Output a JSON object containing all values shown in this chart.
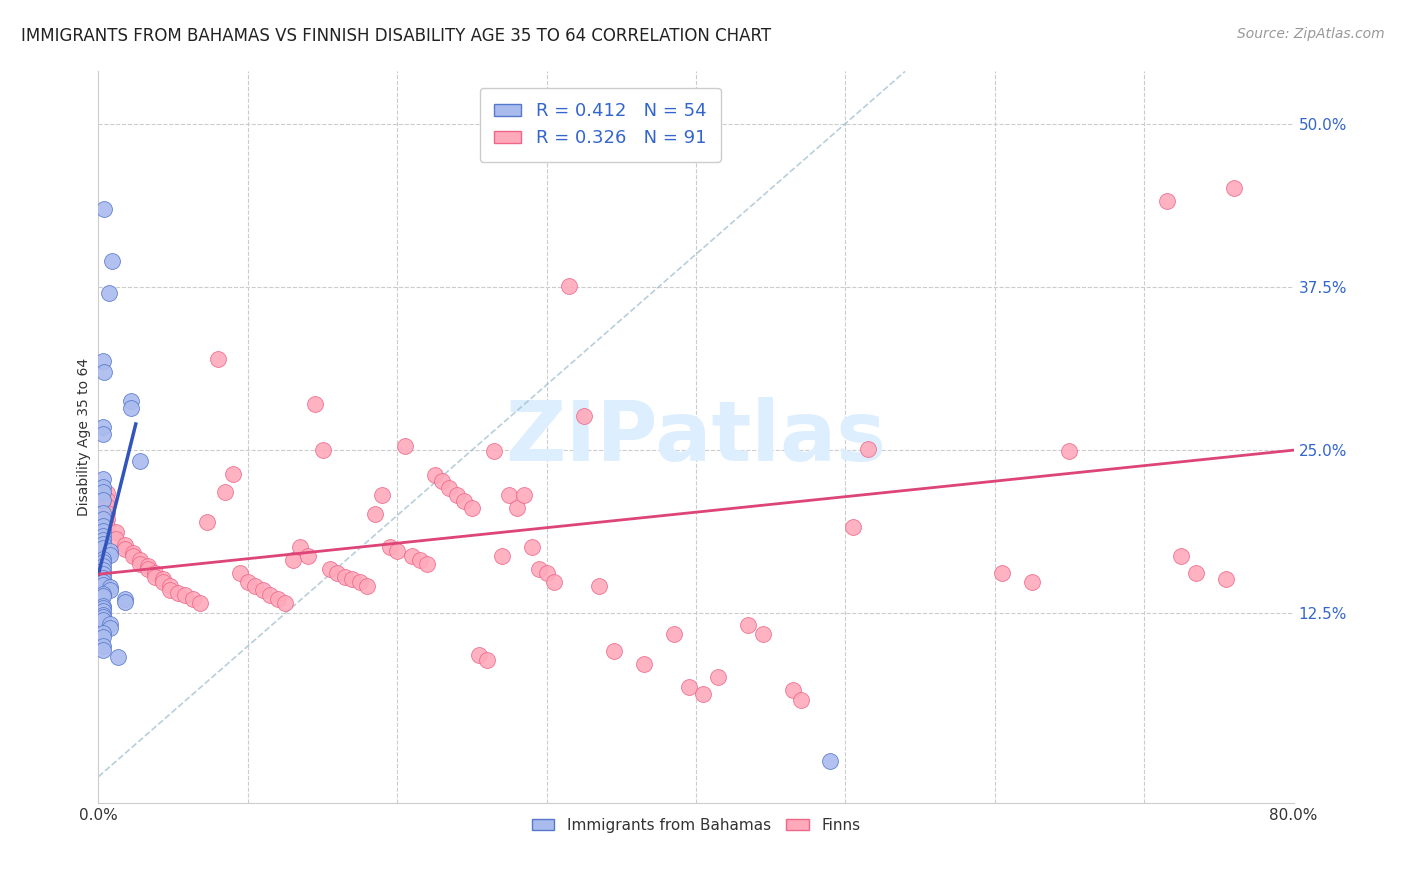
{
  "title": "IMMIGRANTS FROM BAHAMAS VS FINNISH DISABILITY AGE 35 TO 64 CORRELATION CHART",
  "source": "Source: ZipAtlas.com",
  "ylabel": "Disability Age 35 to 64",
  "ytick_labels": [
    "12.5%",
    "25.0%",
    "37.5%",
    "50.0%"
  ],
  "ytick_values": [
    0.125,
    0.25,
    0.375,
    0.5
  ],
  "xlim": [
    0.0,
    0.8
  ],
  "ylim": [
    -0.02,
    0.54
  ],
  "xlim_display": [
    0.0,
    0.8
  ],
  "watermark": "ZIPatlas",
  "blue_scatter": [
    [
      0.004,
      0.435
    ],
    [
      0.009,
      0.395
    ],
    [
      0.007,
      0.37
    ],
    [
      0.003,
      0.318
    ],
    [
      0.004,
      0.31
    ],
    [
      0.022,
      0.288
    ],
    [
      0.022,
      0.282
    ],
    [
      0.003,
      0.268
    ],
    [
      0.003,
      0.262
    ],
    [
      0.028,
      0.242
    ],
    [
      0.003,
      0.228
    ],
    [
      0.003,
      0.222
    ],
    [
      0.003,
      0.218
    ],
    [
      0.003,
      0.212
    ],
    [
      0.003,
      0.202
    ],
    [
      0.003,
      0.197
    ],
    [
      0.003,
      0.192
    ],
    [
      0.003,
      0.188
    ],
    [
      0.003,
      0.184
    ],
    [
      0.003,
      0.181
    ],
    [
      0.003,
      0.178
    ],
    [
      0.003,
      0.175
    ],
    [
      0.008,
      0.173
    ],
    [
      0.008,
      0.17
    ],
    [
      0.003,
      0.167
    ],
    [
      0.003,
      0.164
    ],
    [
      0.003,
      0.161
    ],
    [
      0.003,
      0.158
    ],
    [
      0.003,
      0.155
    ],
    [
      0.003,
      0.152
    ],
    [
      0.003,
      0.149
    ],
    [
      0.003,
      0.147
    ],
    [
      0.008,
      0.145
    ],
    [
      0.008,
      0.143
    ],
    [
      0.003,
      0.14
    ],
    [
      0.003,
      0.138
    ],
    [
      0.018,
      0.136
    ],
    [
      0.018,
      0.134
    ],
    [
      0.003,
      0.131
    ],
    [
      0.003,
      0.129
    ],
    [
      0.003,
      0.127
    ],
    [
      0.003,
      0.124
    ],
    [
      0.003,
      0.122
    ],
    [
      0.003,
      0.12
    ],
    [
      0.008,
      0.117
    ],
    [
      0.008,
      0.114
    ],
    [
      0.003,
      0.11
    ],
    [
      0.003,
      0.107
    ],
    [
      0.003,
      0.1
    ],
    [
      0.003,
      0.097
    ],
    [
      0.013,
      0.092
    ],
    [
      0.49,
      0.012
    ]
  ],
  "pink_scatter": [
    [
      0.006,
      0.217
    ],
    [
      0.006,
      0.212
    ],
    [
      0.006,
      0.207
    ],
    [
      0.006,
      0.202
    ],
    [
      0.006,
      0.197
    ],
    [
      0.006,
      0.192
    ],
    [
      0.012,
      0.187
    ],
    [
      0.012,
      0.182
    ],
    [
      0.018,
      0.177
    ],
    [
      0.018,
      0.174
    ],
    [
      0.023,
      0.171
    ],
    [
      0.023,
      0.169
    ],
    [
      0.028,
      0.166
    ],
    [
      0.028,
      0.163
    ],
    [
      0.033,
      0.161
    ],
    [
      0.033,
      0.159
    ],
    [
      0.038,
      0.156
    ],
    [
      0.038,
      0.153
    ],
    [
      0.043,
      0.151
    ],
    [
      0.043,
      0.149
    ],
    [
      0.048,
      0.146
    ],
    [
      0.048,
      0.143
    ],
    [
      0.053,
      0.141
    ],
    [
      0.058,
      0.139
    ],
    [
      0.063,
      0.136
    ],
    [
      0.068,
      0.133
    ],
    [
      0.073,
      0.195
    ],
    [
      0.08,
      0.32
    ],
    [
      0.085,
      0.218
    ],
    [
      0.09,
      0.232
    ],
    [
      0.095,
      0.156
    ],
    [
      0.1,
      0.149
    ],
    [
      0.105,
      0.146
    ],
    [
      0.11,
      0.143
    ],
    [
      0.115,
      0.139
    ],
    [
      0.12,
      0.136
    ],
    [
      0.125,
      0.133
    ],
    [
      0.13,
      0.166
    ],
    [
      0.135,
      0.176
    ],
    [
      0.14,
      0.169
    ],
    [
      0.145,
      0.285
    ],
    [
      0.15,
      0.25
    ],
    [
      0.155,
      0.159
    ],
    [
      0.16,
      0.156
    ],
    [
      0.165,
      0.153
    ],
    [
      0.17,
      0.151
    ],
    [
      0.175,
      0.149
    ],
    [
      0.18,
      0.146
    ],
    [
      0.185,
      0.201
    ],
    [
      0.19,
      0.216
    ],
    [
      0.195,
      0.176
    ],
    [
      0.2,
      0.173
    ],
    [
      0.205,
      0.253
    ],
    [
      0.21,
      0.169
    ],
    [
      0.215,
      0.166
    ],
    [
      0.22,
      0.163
    ],
    [
      0.225,
      0.231
    ],
    [
      0.23,
      0.226
    ],
    [
      0.235,
      0.221
    ],
    [
      0.24,
      0.216
    ],
    [
      0.245,
      0.211
    ],
    [
      0.25,
      0.206
    ],
    [
      0.255,
      0.093
    ],
    [
      0.26,
      0.089
    ],
    [
      0.265,
      0.249
    ],
    [
      0.27,
      0.169
    ],
    [
      0.275,
      0.216
    ],
    [
      0.28,
      0.206
    ],
    [
      0.285,
      0.216
    ],
    [
      0.29,
      0.176
    ],
    [
      0.295,
      0.159
    ],
    [
      0.3,
      0.156
    ],
    [
      0.305,
      0.149
    ],
    [
      0.315,
      0.376
    ],
    [
      0.325,
      0.276
    ],
    [
      0.335,
      0.146
    ],
    [
      0.345,
      0.096
    ],
    [
      0.365,
      0.086
    ],
    [
      0.385,
      0.109
    ],
    [
      0.395,
      0.069
    ],
    [
      0.405,
      0.063
    ],
    [
      0.415,
      0.076
    ],
    [
      0.435,
      0.116
    ],
    [
      0.445,
      0.109
    ],
    [
      0.465,
      0.066
    ],
    [
      0.47,
      0.059
    ],
    [
      0.505,
      0.191
    ],
    [
      0.515,
      0.251
    ],
    [
      0.605,
      0.156
    ],
    [
      0.625,
      0.149
    ],
    [
      0.65,
      0.249
    ],
    [
      0.715,
      0.441
    ],
    [
      0.725,
      0.169
    ],
    [
      0.735,
      0.156
    ],
    [
      0.755,
      0.151
    ],
    [
      0.76,
      0.451
    ]
  ],
  "blue_line_color": "#3355bb",
  "pink_line_color": "#dd4477",
  "dashed_line_color": "#88aaccaa",
  "scatter_blue_color": "#aabbee",
  "scatter_pink_color": "#ffaabb",
  "blue_edge_color": "#5577cc",
  "pink_edge_color": "#ee6688",
  "title_fontsize": 12,
  "axis_label_fontsize": 10,
  "tick_fontsize": 11,
  "legend_fontsize": 13,
  "source_fontsize": 10,
  "watermark_fontsize": 60,
  "watermark_color": "#ddeeff",
  "background_color": "#ffffff",
  "grid_color": "#cccccc"
}
